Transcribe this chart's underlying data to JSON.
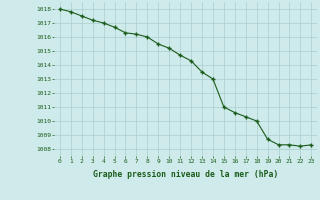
{
  "hours": [
    0,
    1,
    2,
    3,
    4,
    5,
    6,
    7,
    8,
    9,
    10,
    11,
    12,
    13,
    14,
    15,
    16,
    17,
    18,
    19,
    20,
    21,
    22,
    23
  ],
  "pressure": [
    1018.0,
    1017.8,
    1017.5,
    1017.2,
    1017.0,
    1016.7,
    1016.3,
    1016.2,
    1016.0,
    1015.5,
    1015.2,
    1014.7,
    1014.3,
    1013.5,
    1013.0,
    1011.0,
    1010.6,
    1010.3,
    1010.0,
    1008.7,
    1008.3,
    1008.3,
    1008.2,
    1008.3
  ],
  "line_color": "#1a5c1a",
  "marker": "+",
  "marker_size": 3.5,
  "marker_edge_width": 1.0,
  "background_color": "#ceeaea",
  "grid_color": "#aacece",
  "xlabel": "Graphe pression niveau de la mer (hPa)",
  "xlabel_color": "#1a5c1a",
  "tick_color": "#1a5c1a",
  "tick_fontsize": 4.5,
  "xlabel_fontsize": 5.8,
  "ylim": [
    1007.5,
    1018.5
  ],
  "yticks": [
    1008,
    1009,
    1010,
    1011,
    1012,
    1013,
    1014,
    1015,
    1016,
    1017,
    1018
  ],
  "xlim": [
    -0.5,
    23.5
  ],
  "xtick_labels": [
    "0",
    "1",
    "2",
    "3",
    "4",
    "5",
    "6",
    "7",
    "8",
    "9",
    "10",
    "11",
    "12",
    "13",
    "14",
    "15",
    "16",
    "17",
    "18",
    "19",
    "20",
    "21",
    "22",
    "23"
  ]
}
